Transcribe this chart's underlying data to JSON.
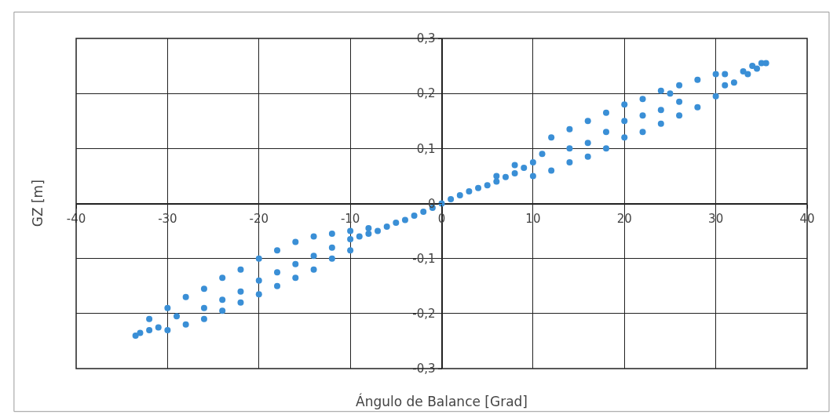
{
  "chart_data": {
    "type": "scatter",
    "xlabel": "Ángulo de Balance [Grad]",
    "ylabel": "GZ [m]",
    "xlim": [
      -40,
      40
    ],
    "ylim": [
      -0.3,
      0.3
    ],
    "xticks": [
      -40,
      -30,
      -20,
      -10,
      0,
      10,
      20,
      30,
      40
    ],
    "yticks": [
      {
        "value": -0.3,
        "label": "-0,3"
      },
      {
        "value": -0.2,
        "label": "-0,2"
      },
      {
        "value": -0.1,
        "label": "-0,1"
      },
      {
        "value": 0,
        "label": "0"
      },
      {
        "value": 0.1,
        "label": "0,1"
      },
      {
        "value": 0.2,
        "label": "0,2"
      },
      {
        "value": 0.3,
        "label": "0,3"
      }
    ],
    "grid": true,
    "marker": "circle",
    "series": [
      {
        "color": "#3a8fd6",
        "x": [
          0,
          1,
          2,
          3,
          4,
          5,
          6,
          7,
          8,
          9,
          10,
          10,
          11,
          8,
          6,
          12,
          14,
          16,
          18,
          20,
          22,
          24,
          26,
          28,
          30,
          31,
          12,
          14,
          16,
          18,
          20,
          22,
          24,
          26,
          28,
          30,
          31,
          32,
          33,
          34,
          35,
          35.5,
          34.5,
          33.5,
          14,
          16,
          18,
          20,
          22,
          24,
          25,
          26,
          -1,
          -2,
          -3,
          -4,
          -5,
          -6,
          -7,
          -8,
          -9,
          -10,
          -8,
          -10,
          -33.5,
          -33,
          -32,
          -31,
          -29,
          -30,
          -28,
          -26,
          -24,
          -22,
          -20,
          -18,
          -16,
          -14,
          -12,
          -10,
          -32,
          -30,
          -28,
          -26,
          -24,
          -22,
          -20,
          -18,
          -16,
          -14,
          -12,
          -26,
          -24,
          -22,
          -20,
          -18,
          -16,
          -14,
          -12
        ],
        "values": [
          0,
          0.008,
          0.015,
          0.022,
          0.028,
          0.033,
          0.04,
          0.048,
          0.055,
          0.065,
          0.075,
          0.05,
          0.09,
          0.07,
          0.05,
          0.12,
          0.135,
          0.15,
          0.165,
          0.18,
          0.19,
          0.205,
          0.215,
          0.225,
          0.235,
          0.235,
          0.06,
          0.075,
          0.085,
          0.1,
          0.12,
          0.13,
          0.145,
          0.16,
          0.175,
          0.195,
          0.215,
          0.22,
          0.24,
          0.25,
          0.255,
          0.255,
          0.245,
          0.235,
          0.1,
          0.11,
          0.13,
          0.15,
          0.16,
          0.17,
          0.2,
          0.185,
          -0.008,
          -0.015,
          -0.022,
          -0.03,
          -0.035,
          -0.042,
          -0.05,
          -0.055,
          -0.06,
          -0.065,
          -0.045,
          -0.05,
          -0.24,
          -0.235,
          -0.23,
          -0.225,
          -0.205,
          -0.23,
          -0.22,
          -0.21,
          -0.195,
          -0.18,
          -0.165,
          -0.15,
          -0.135,
          -0.12,
          -0.1,
          -0.085,
          -0.21,
          -0.19,
          -0.17,
          -0.155,
          -0.135,
          -0.12,
          -0.1,
          -0.085,
          -0.07,
          -0.06,
          -0.055,
          -0.19,
          -0.175,
          -0.16,
          -0.14,
          -0.125,
          -0.11,
          -0.095,
          -0.08
        ]
      }
    ]
  }
}
